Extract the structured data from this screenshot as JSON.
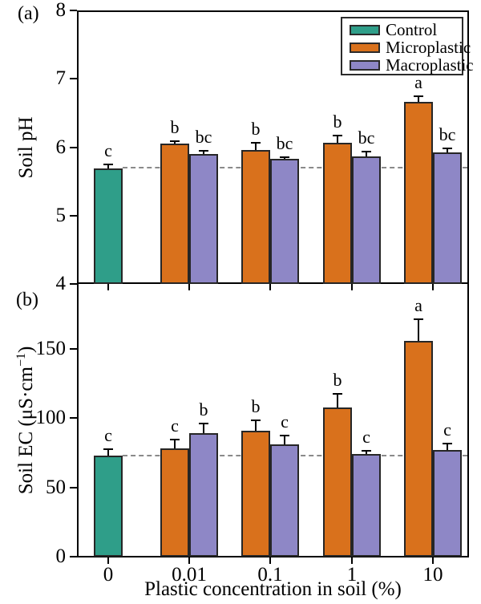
{
  "figure": {
    "panel_a_label": "(a)",
    "panel_b_label": "(b)",
    "xlabel": "Plastic concentration in soil (%)",
    "ylabel_a": "Soil pH",
    "ylabel_b_base": "Soil EC (μS·cm",
    "ylabel_b_sup": "−1",
    "ylabel_b_close": ")"
  },
  "legend": {
    "items": [
      {
        "label": "Control",
        "color": "#2f9e89"
      },
      {
        "label": "Microplastic",
        "color": "#d9711c"
      },
      {
        "label": "Macroplastic",
        "color": "#8e87c6"
      }
    ]
  },
  "colors": {
    "control": "#2f9e89",
    "microplastic": "#d9711c",
    "macroplastic": "#8e87c6",
    "bar_border": "#262626",
    "reference_line": "#8a8a8a",
    "axis": "#000000"
  },
  "chart_data": [
    {
      "type": "bar",
      "panel": "a",
      "ylabel": "Soil pH",
      "ylim": [
        4,
        8
      ],
      "yticks": [
        4,
        5,
        6,
        7,
        8
      ],
      "categories": [
        "0",
        "0.01",
        "0.1",
        "1",
        "10"
      ],
      "series": [
        {
          "name": "Control",
          "color": "#2f9e89",
          "values": [
            5.69,
            null,
            null,
            null,
            null
          ],
          "errors": [
            0.07,
            null,
            null,
            null,
            null
          ],
          "letters": [
            "c",
            null,
            null,
            null,
            null
          ]
        },
        {
          "name": "Microplastic",
          "color": "#d9711c",
          "values": [
            null,
            6.05,
            5.96,
            6.06,
            6.66
          ],
          "errors": [
            null,
            0.05,
            0.12,
            0.12,
            0.1
          ],
          "letters": [
            null,
            "b",
            "b",
            "b",
            "a"
          ]
        },
        {
          "name": "Macroplastic",
          "color": "#8e87c6",
          "values": [
            null,
            5.9,
            5.83,
            5.87,
            5.92
          ],
          "errors": [
            null,
            0.06,
            0.04,
            0.08,
            0.08
          ],
          "letters": [
            null,
            "bc",
            "bc",
            "bc",
            "bc"
          ]
        }
      ],
      "dashed_reference": 5.7,
      "legend_position": "top-right",
      "grid": false
    },
    {
      "type": "bar",
      "panel": "b",
      "ylabel": "Soil EC (μS·cm⁻¹)",
      "ylim": [
        0,
        197
      ],
      "yticks": [
        0,
        50,
        100,
        150
      ],
      "categories": [
        "0",
        "0.01",
        "0.1",
        "1",
        "10"
      ],
      "xlabel": "Plastic concentration in soil (%)",
      "series": [
        {
          "name": "Control",
          "color": "#2f9e89",
          "values": [
            73,
            null,
            null,
            null,
            null
          ],
          "errors": [
            5,
            null,
            null,
            null,
            null
          ],
          "letters": [
            "c",
            null,
            null,
            null,
            null
          ]
        },
        {
          "name": "Microplastic",
          "color": "#d9711c",
          "values": [
            null,
            78,
            91,
            108,
            156
          ],
          "errors": [
            null,
            7,
            8,
            10,
            16
          ],
          "letters": [
            null,
            "c",
            "b",
            "b",
            "a"
          ]
        },
        {
          "name": "Macroplastic",
          "color": "#8e87c6",
          "values": [
            null,
            89,
            81,
            74,
            77
          ],
          "errors": [
            null,
            8,
            7,
            3,
            5
          ],
          "letters": [
            null,
            "b",
            "c",
            "c",
            "c"
          ]
        }
      ],
      "dashed_reference": 73,
      "grid": false
    }
  ]
}
